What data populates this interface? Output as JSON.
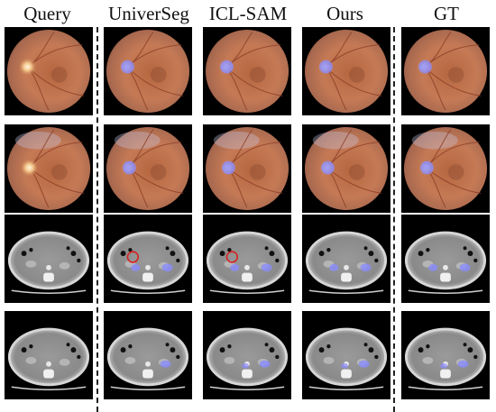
{
  "figure": {
    "columns": [
      {
        "key": "query",
        "label": "Query"
      },
      {
        "key": "universeg",
        "label": "UniverSeg"
      },
      {
        "key": "iclsam",
        "label": "ICL-SAM"
      },
      {
        "key": "ours",
        "label": "Ours"
      },
      {
        "key": "gt",
        "label": "GT"
      }
    ],
    "rows": [
      {
        "key": "fundus-1",
        "modality": "fundus"
      },
      {
        "key": "fundus-2",
        "modality": "fundus"
      },
      {
        "key": "ct-1",
        "modality": "ct"
      },
      {
        "key": "ct-2",
        "modality": "ct"
      }
    ],
    "colors": {
      "mask_overlay": "#8a8cff",
      "error_circle": "#d62020",
      "divider": "#222222"
    }
  }
}
